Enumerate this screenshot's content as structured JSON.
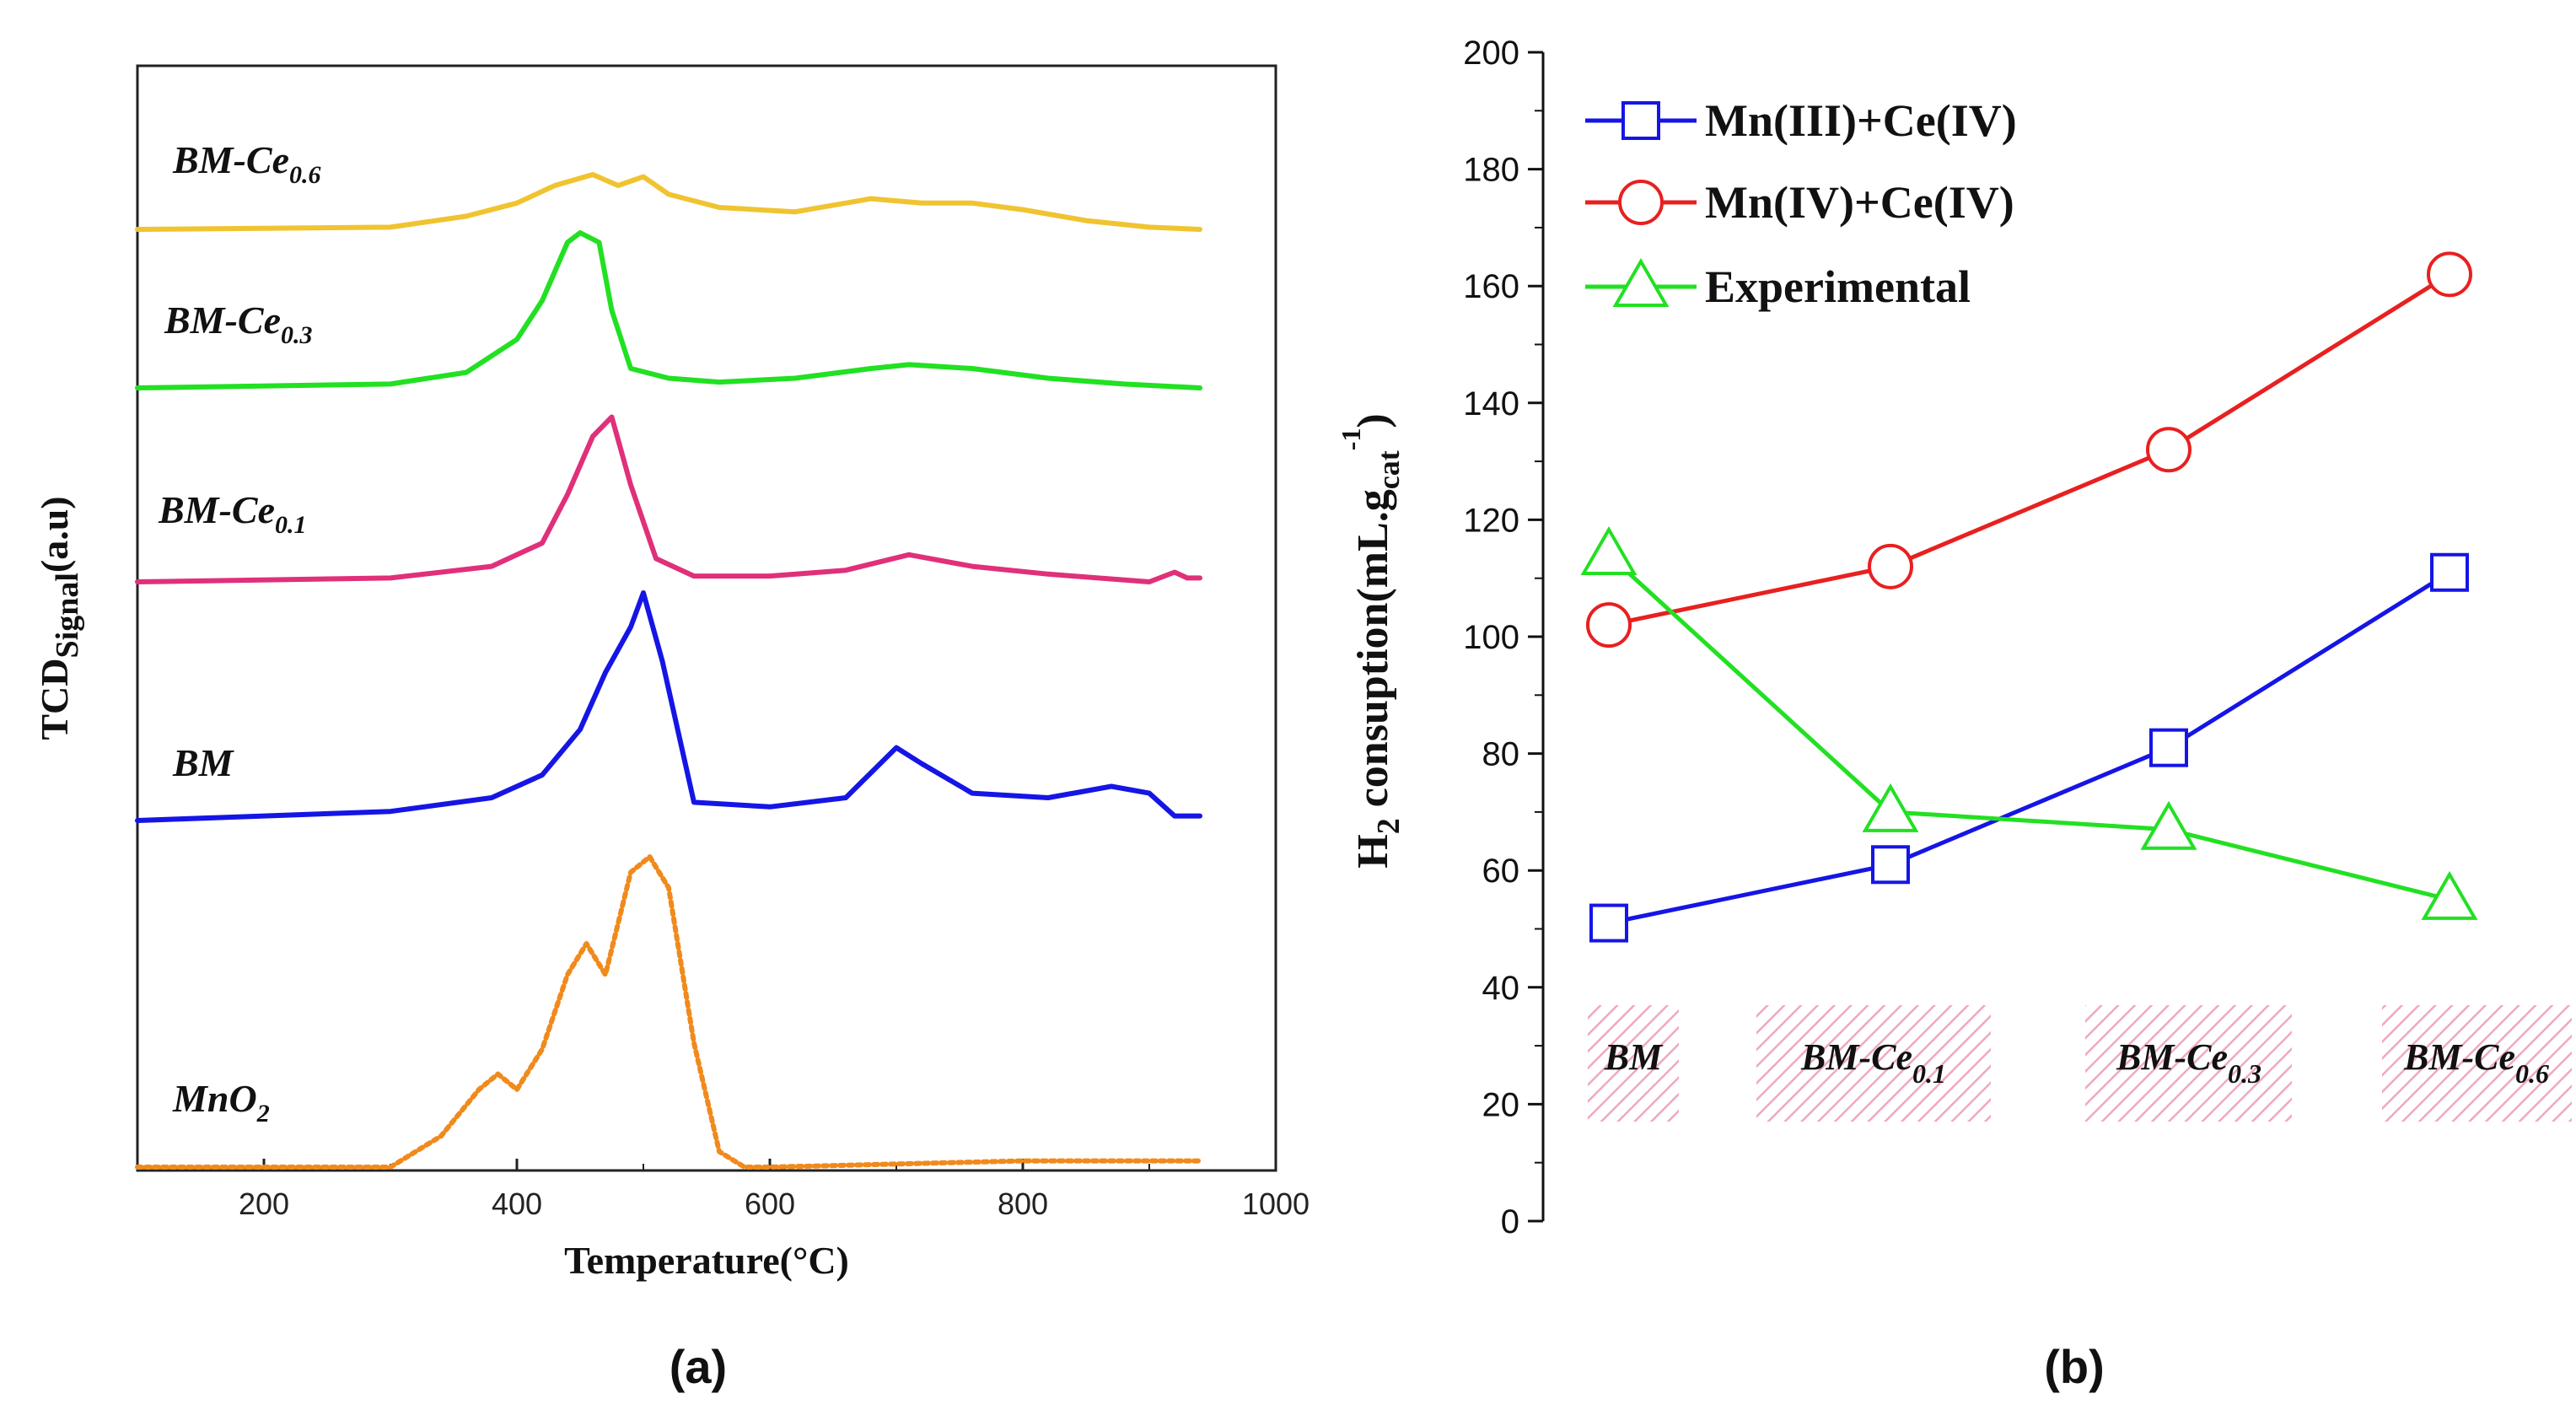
{
  "chart_data": [
    {
      "type": "line",
      "panel_label": "(a)",
      "xlabel": "Temperature(°C)",
      "ylabel": {
        "main": "TCD",
        "sub": "Signal",
        "unit": "(a.u)"
      },
      "xlim": [
        100,
        1000
      ],
      "xticks": [
        "200",
        "400",
        "600",
        "800",
        "1000"
      ],
      "series": [
        {
          "name": "BM-Ce0.6",
          "label_main": "BM-Ce",
          "label_sub": "0.6",
          "color": "#f0c330",
          "dashed": false,
          "x": [
            100,
            300,
            360,
            400,
            430,
            460,
            480,
            500,
            520,
            560,
            620,
            680,
            720,
            760,
            800,
            850,
            900,
            940
          ],
          "y": [
            0.0,
            0.01,
            0.06,
            0.12,
            0.2,
            0.25,
            0.2,
            0.24,
            0.16,
            0.1,
            0.08,
            0.14,
            0.12,
            0.12,
            0.09,
            0.04,
            0.01,
            0.0
          ]
        },
        {
          "name": "BM-Ce0.3",
          "label_main": "BM-Ce",
          "label_sub": "0.3",
          "color": "#22e022",
          "dashed": false,
          "x": [
            100,
            300,
            360,
            400,
            420,
            440,
            450,
            465,
            475,
            490,
            520,
            560,
            620,
            680,
            710,
            760,
            820,
            880,
            940
          ],
          "y": [
            0.0,
            0.02,
            0.08,
            0.25,
            0.45,
            0.75,
            0.8,
            0.75,
            0.4,
            0.1,
            0.05,
            0.03,
            0.05,
            0.1,
            0.12,
            0.1,
            0.05,
            0.02,
            0.0
          ]
        },
        {
          "name": "BM-Ce0.1",
          "label_main": "BM-Ce",
          "label_sub": "0.1",
          "color": "#e0307a",
          "dashed": false,
          "x": [
            100,
            300,
            380,
            420,
            440,
            460,
            475,
            490,
            510,
            540,
            600,
            660,
            710,
            760,
            820,
            900,
            920,
            930,
            940
          ],
          "y": [
            0.0,
            0.02,
            0.08,
            0.2,
            0.45,
            0.75,
            0.85,
            0.5,
            0.12,
            0.03,
            0.03,
            0.06,
            0.14,
            0.08,
            0.04,
            0.0,
            0.05,
            0.02,
            0.02
          ]
        },
        {
          "name": "BM",
          "label_main": "BM",
          "label_sub": "",
          "color": "#1515e6",
          "dashed": false,
          "x": [
            100,
            300,
            380,
            420,
            450,
            470,
            490,
            500,
            515,
            540,
            600,
            660,
            700,
            720,
            760,
            820,
            870,
            900,
            920,
            940
          ],
          "y": [
            0.0,
            0.04,
            0.1,
            0.2,
            0.4,
            0.65,
            0.85,
            1.0,
            0.7,
            0.08,
            0.06,
            0.1,
            0.32,
            0.25,
            0.12,
            0.1,
            0.15,
            0.12,
            0.02,
            0.02
          ]
        },
        {
          "name": "MnO2",
          "label_main": "MnO",
          "label_sub": "2",
          "color": "#f08a1c",
          "dashed": true,
          "x": [
            100,
            300,
            340,
            370,
            385,
            400,
            420,
            440,
            455,
            470,
            490,
            505,
            520,
            540,
            560,
            580,
            600,
            800,
            940
          ],
          "y": [
            0.0,
            0.0,
            0.1,
            0.25,
            0.3,
            0.25,
            0.38,
            0.62,
            0.72,
            0.62,
            0.95,
            1.0,
            0.9,
            0.4,
            0.05,
            0.0,
            0.0,
            0.02,
            0.02
          ]
        }
      ]
    },
    {
      "type": "line",
      "panel_label": "(b)",
      "ylabel": {
        "main": "H",
        "sub1": "2",
        "mid": " consuption(mL.g",
        "sub2": "cat",
        "sup": "-1",
        "end": ")"
      },
      "ylim": [
        0,
        200
      ],
      "yticks": [
        "0",
        "20",
        "40",
        "60",
        "80",
        "100",
        "120",
        "140",
        "160",
        "180",
        "200"
      ],
      "categories": [
        {
          "main": "BM",
          "sub": ""
        },
        {
          "main": "BM-Ce",
          "sub": "0.1"
        },
        {
          "main": "BM-Ce",
          "sub": "0.3"
        },
        {
          "main": "BM-Ce",
          "sub": "0.6"
        }
      ],
      "series": [
        {
          "name": "Mn(III)+Ce(IV)",
          "color": "#1515e6",
          "marker": "square",
          "values": [
            51,
            61,
            81,
            111
          ]
        },
        {
          "name": "Mn(IV)+Ce(IV)",
          "color": "#e82020",
          "marker": "circle",
          "values": [
            102,
            112,
            132,
            162
          ]
        },
        {
          "name": "Experimental",
          "color": "#22e022",
          "marker": "triangle",
          "values": [
            114,
            70,
            67,
            55
          ]
        }
      ]
    }
  ]
}
